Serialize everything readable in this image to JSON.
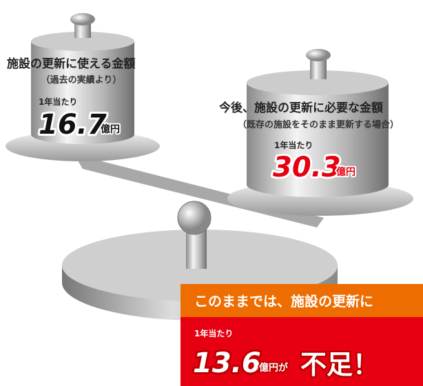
{
  "left": {
    "title": "施設の更新に使える金額",
    "subtitle": "（過去の実績より）",
    "per_year": "1年当たり",
    "amount": "16.7",
    "unit": "億円"
  },
  "right": {
    "title": "今後、施設の更新に必要な金額",
    "subtitle": "（既存の施設をそのまま更新する場合）",
    "per_year": "1年当たり",
    "amount": "30.3",
    "unit": "億円"
  },
  "banner": {
    "heading": "このままでは、施設の更新に",
    "per_year": "1年当たり",
    "amount": "13.6",
    "unit": "億円が",
    "result": "不足！"
  }
}
